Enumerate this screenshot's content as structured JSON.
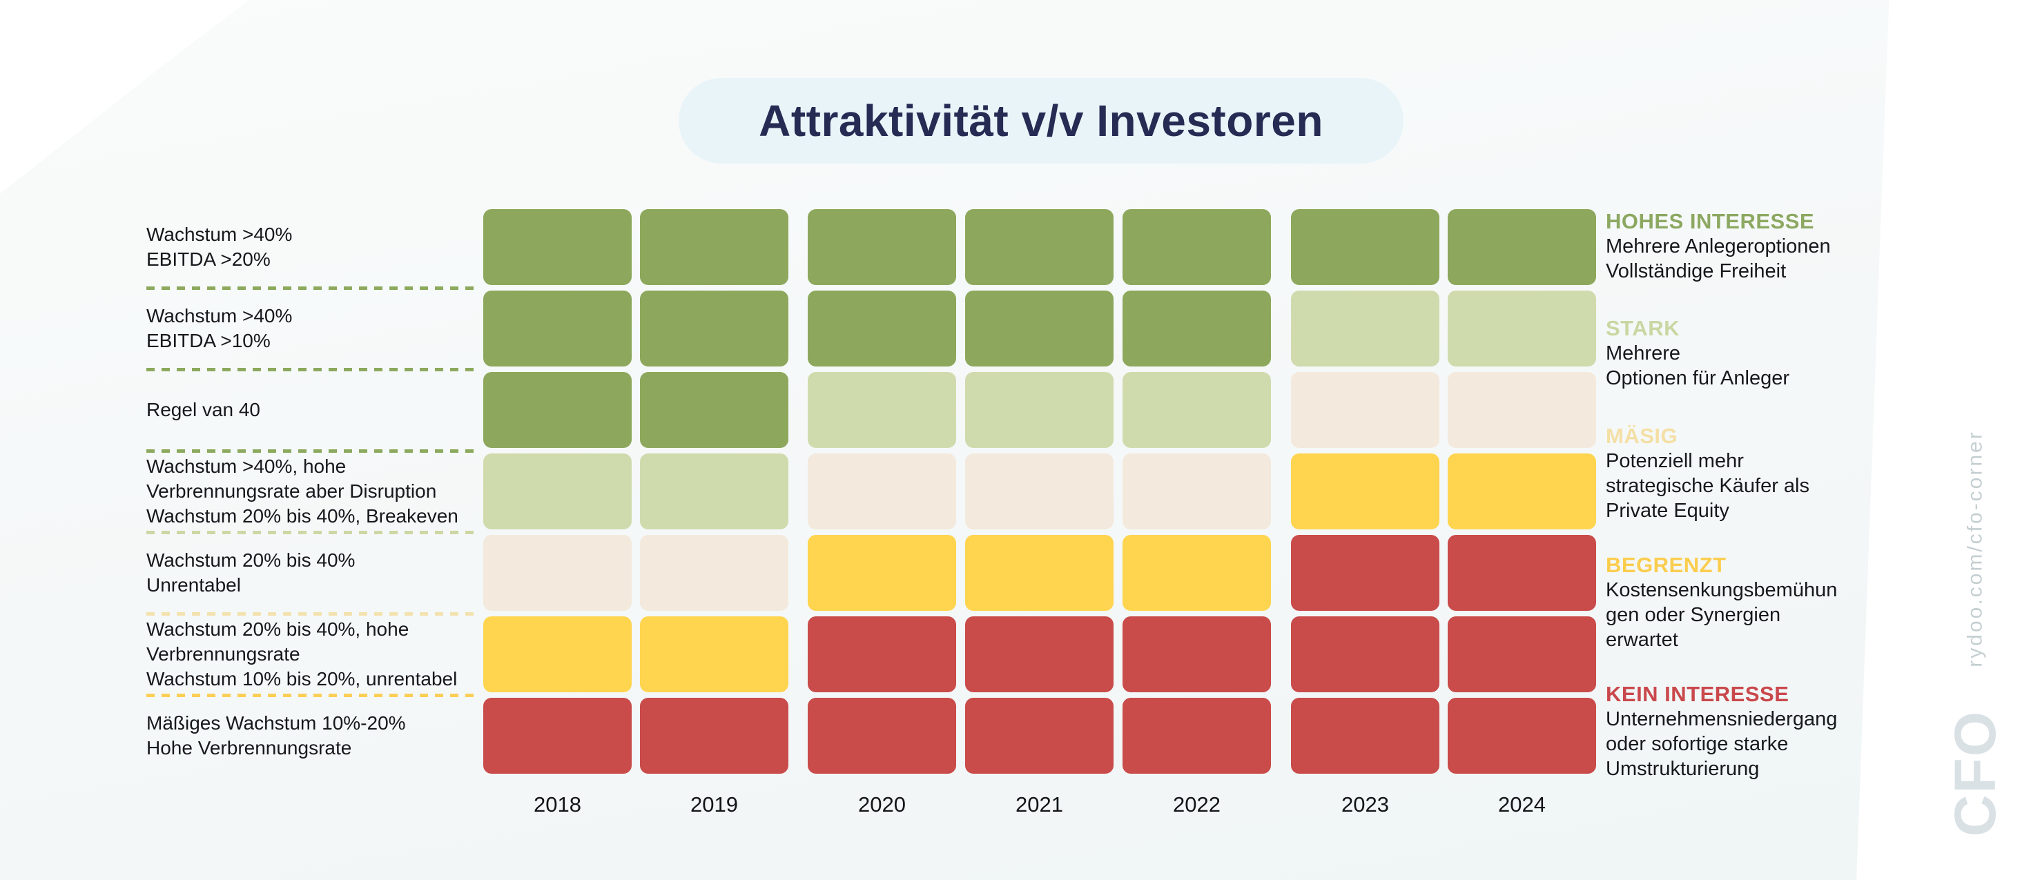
{
  "title": "Attraktivität v/v Investoren",
  "watermark": {
    "url_text": "rydoo.com/cfo-corner",
    "logo_text": "CFO"
  },
  "colors": {
    "title_bg": "#E9F4F9",
    "title_text": "#262B54",
    "cells": {
      "high": "#8DA85C",
      "strong": "#CFDBAD",
      "moderate": "#F3E9DC",
      "limited": "#FFD44F",
      "none": "#C94B4A"
    },
    "legend": {
      "high": "#8CA861",
      "strong": "#C9D7A2",
      "moderate": "#F4DFA5",
      "limited": "#FBCD4E",
      "none": "#C9484C"
    }
  },
  "chart_data": {
    "type": "heatmap",
    "title": "Attraktivität v/v Investoren",
    "columns": [
      "2018",
      "2019",
      "2020",
      "2021",
      "2022",
      "2023",
      "2024"
    ],
    "column_groups": [
      [
        "2018",
        "2019"
      ],
      [
        "2020",
        "2021",
        "2022"
      ],
      [
        "2023",
        "2024"
      ]
    ],
    "value_scale": [
      "high",
      "strong",
      "moderate",
      "limited",
      "none"
    ],
    "rows": [
      {
        "label_lines": [
          "Wachstum >40%",
          "EBITDA >20%"
        ],
        "values": [
          "high",
          "high",
          "high",
          "high",
          "high",
          "high",
          "high"
        ]
      },
      {
        "label_lines": [
          "Wachstum >40%",
          "EBITDA >10%"
        ],
        "values": [
          "high",
          "high",
          "high",
          "high",
          "high",
          "strong",
          "strong"
        ]
      },
      {
        "label_lines": [
          "Regel van 40"
        ],
        "values": [
          "high",
          "high",
          "strong",
          "strong",
          "strong",
          "moderate",
          "moderate"
        ]
      },
      {
        "label_lines": [
          "Wachstum >40%, hohe",
          "Verbrennungsrate aber Disruption",
          "Wachstum 20% bis 40%, Breakeven"
        ],
        "values": [
          "strong",
          "strong",
          "moderate",
          "moderate",
          "moderate",
          "limited",
          "limited"
        ]
      },
      {
        "label_lines": [
          "Wachstum 20% bis 40%",
          "Unrentabel"
        ],
        "values": [
          "moderate",
          "moderate",
          "limited",
          "limited",
          "limited",
          "none",
          "none"
        ]
      },
      {
        "label_lines": [
          "Wachstum 20% bis 40%, hohe",
          "Verbrennungsrate",
          "Wachstum 10% bis 20%, unrentabel"
        ],
        "values": [
          "limited",
          "limited",
          "none",
          "none",
          "none",
          "none",
          "none"
        ]
      },
      {
        "label_lines": [
          "Mäßiges Wachstum 10%-20%",
          "Hohe Verbrennungsrate"
        ],
        "values": [
          "none",
          "none",
          "none",
          "none",
          "none",
          "none",
          "none"
        ]
      }
    ],
    "separator_colors": [
      "#8CA95D",
      "#8CA95D",
      "#8CA95D",
      "#CBD8A4",
      "#F3E2AE",
      "#FBCE56"
    ],
    "legend": [
      {
        "header": "HOHES INTERESSE",
        "color_key": "high",
        "lines": [
          "Mehrere Anlegeroptionen",
          "Vollständige Freiheit"
        ]
      },
      {
        "header": "STARK",
        "color_key": "strong",
        "lines": [
          "Mehrere",
          "Optionen für Anleger"
        ]
      },
      {
        "header": "MÄSIG",
        "color_key": "moderate",
        "lines": [
          "Potenziell mehr",
          "strategische Käufer als",
          "Private Equity"
        ]
      },
      {
        "header": "BEGRENZT",
        "color_key": "limited",
        "lines": [
          "Kostensenkungsbemühun",
          "gen oder Synergien",
          "erwartet"
        ]
      },
      {
        "header": "KEIN INTERESSE",
        "color_key": "none",
        "lines": [
          "Unternehmensniedergang",
          "oder sofortige starke",
          "Umstrukturierung"
        ]
      }
    ]
  }
}
